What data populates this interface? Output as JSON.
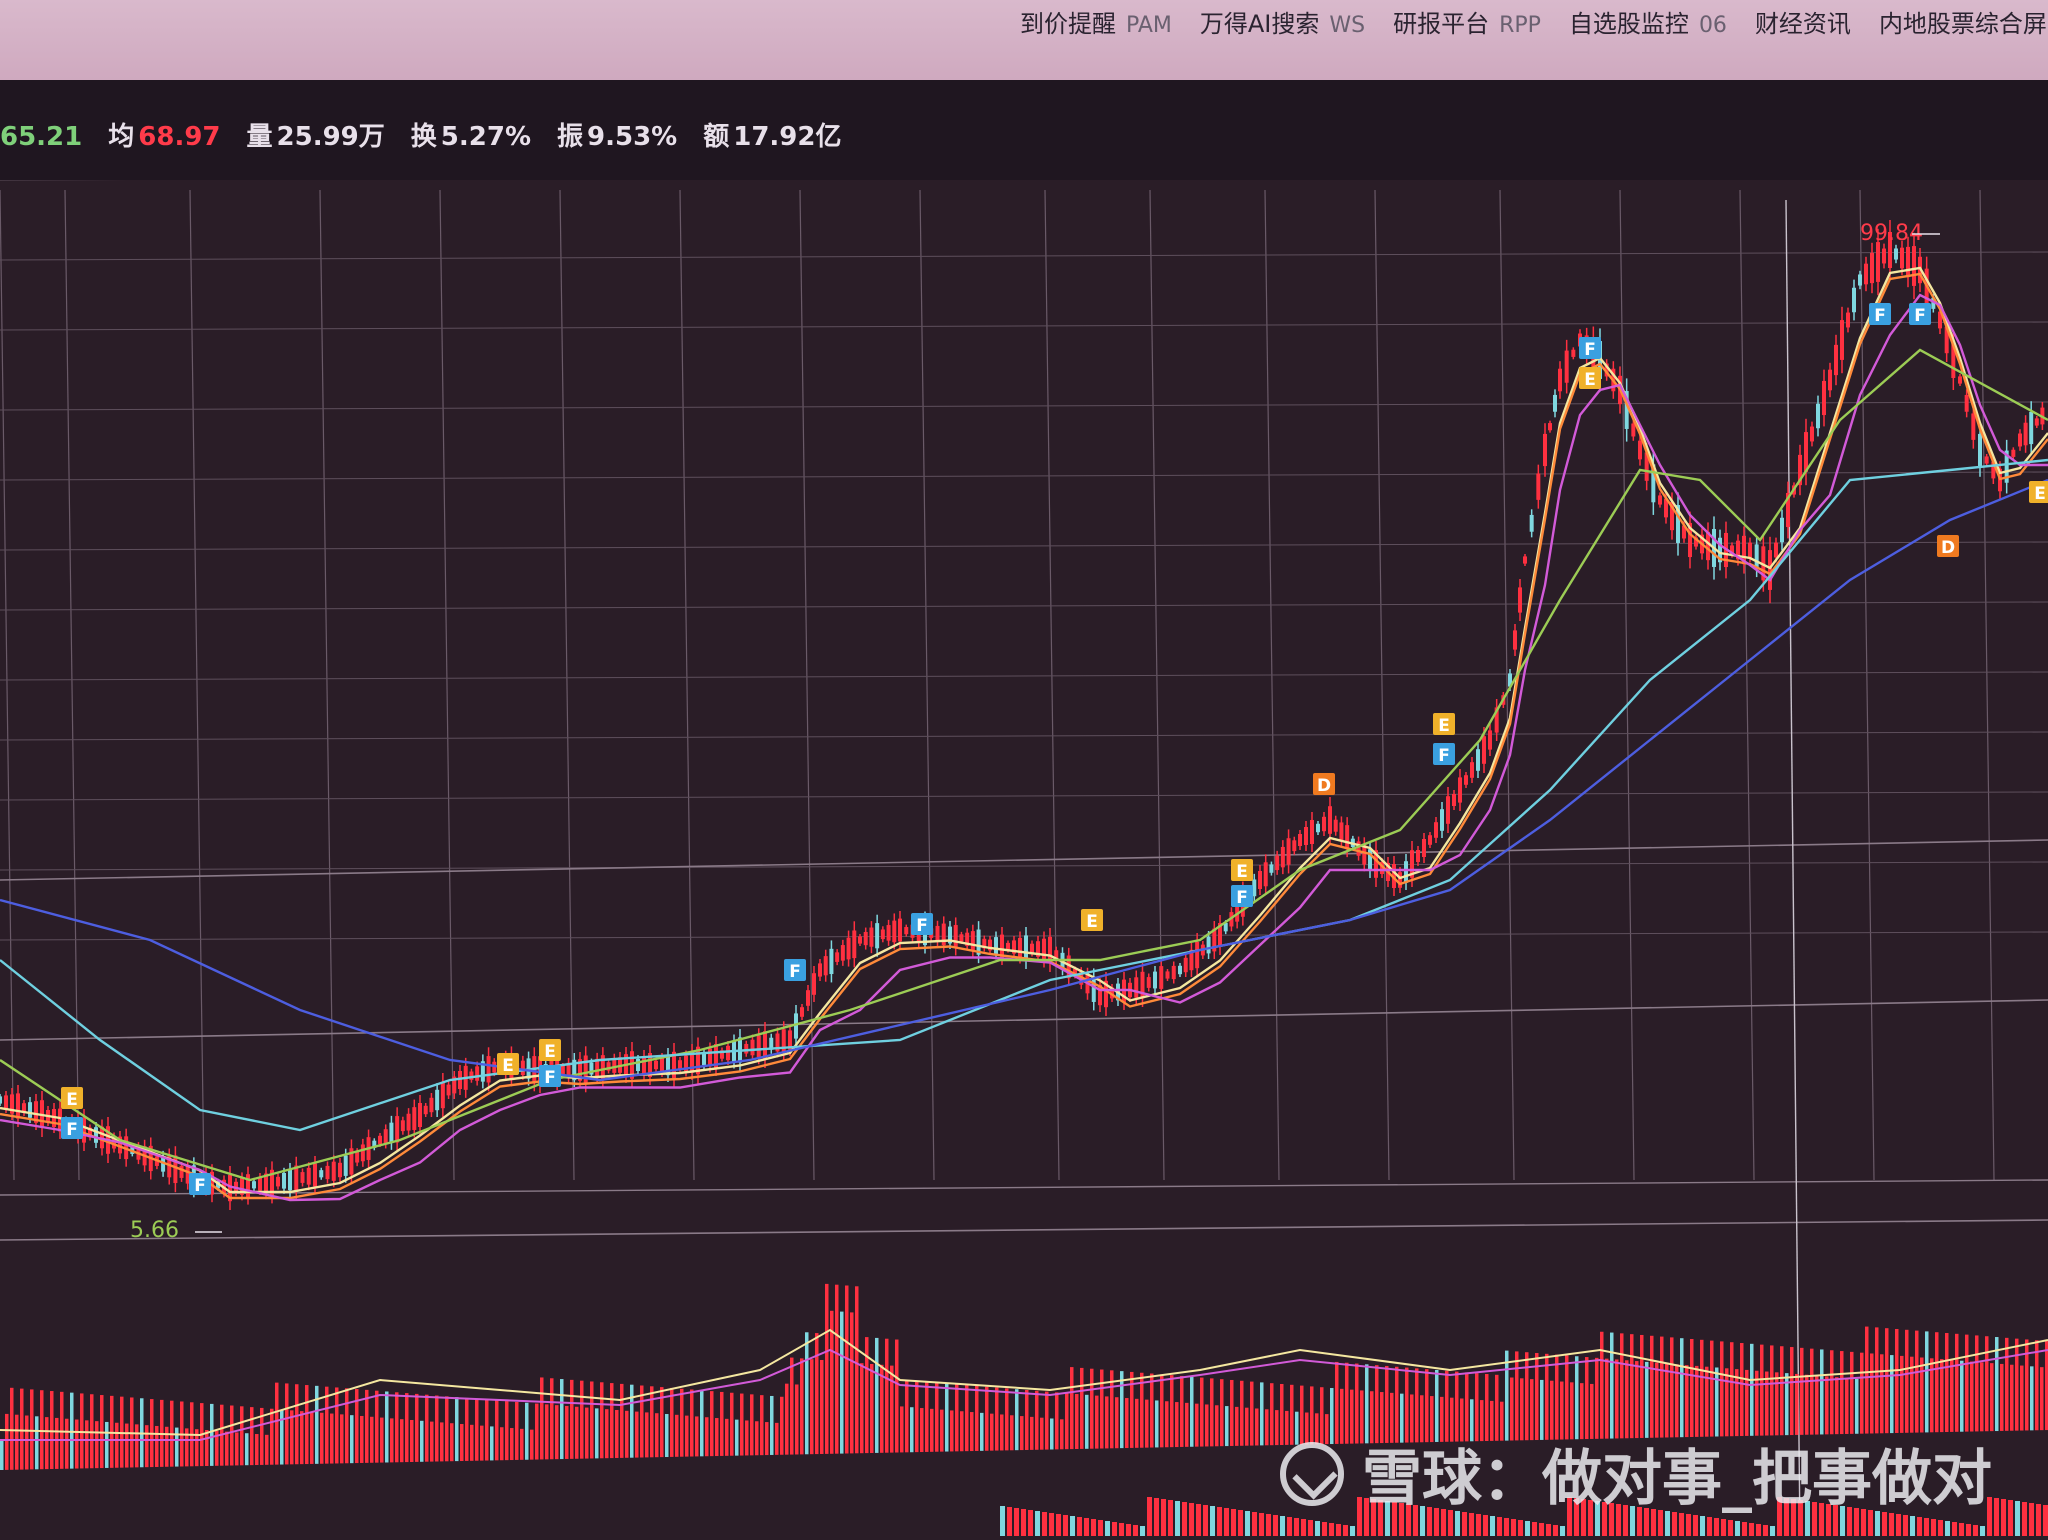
{
  "nav": [
    {
      "label": "到价提醒",
      "code": "PAM"
    },
    {
      "label": "万得AI搜索",
      "code": "WS"
    },
    {
      "label": "研报平台",
      "code": "RPP"
    },
    {
      "label": "自选股监控",
      "code": "06"
    },
    {
      "label": "财经资讯",
      "code": ""
    },
    {
      "label": "内地股票综合屏",
      "code": ""
    }
  ],
  "stats": [
    {
      "key": "",
      "value": "65.21",
      "color": "#7fd07a"
    },
    {
      "key": "均",
      "value": "68.97",
      "color": "#ff3b4a"
    },
    {
      "key": "量",
      "value": "25.99万",
      "color": "#e8e0ea"
    },
    {
      "key": "换",
      "value": "5.27%",
      "color": "#e8e0ea"
    },
    {
      "key": "振",
      "value": "9.53%",
      "color": "#e8e0ea"
    },
    {
      "key": "额",
      "value": "17.92亿",
      "color": "#e8e0ea"
    }
  ],
  "chart": {
    "high_label": "99.84",
    "low_label": "5.66",
    "markers": [
      {
        "t": "E",
        "color": "#f0b12a"
      },
      {
        "t": "F",
        "color": "#3aa0e0"
      },
      {
        "t": "F",
        "color": "#3aa0e0"
      },
      {
        "t": "E",
        "color": "#f0b12a"
      },
      {
        "t": "F",
        "color": "#3aa0e0"
      },
      {
        "t": "E",
        "color": "#f0b12a"
      },
      {
        "t": "F",
        "color": "#3aa0e0"
      },
      {
        "t": "F",
        "color": "#3aa0e0"
      },
      {
        "t": "E",
        "color": "#f0b12a"
      },
      {
        "t": "E",
        "color": "#f0b12a"
      },
      {
        "t": "F",
        "color": "#3aa0e0"
      },
      {
        "t": "D",
        "color": "#f07a20"
      },
      {
        "t": "E",
        "color": "#f0b12a"
      },
      {
        "t": "F",
        "color": "#3aa0e0"
      },
      {
        "t": "F",
        "color": "#3aa0e0"
      },
      {
        "t": "E",
        "color": "#f0b12a"
      },
      {
        "t": "F",
        "color": "#3aa0e0"
      },
      {
        "t": "F",
        "color": "#3aa0e0"
      },
      {
        "t": "D",
        "color": "#f07a20"
      },
      {
        "t": "E",
        "color": "#f0b12a"
      }
    ]
  },
  "watermark": "雪球：做对事_把事做对"
}
